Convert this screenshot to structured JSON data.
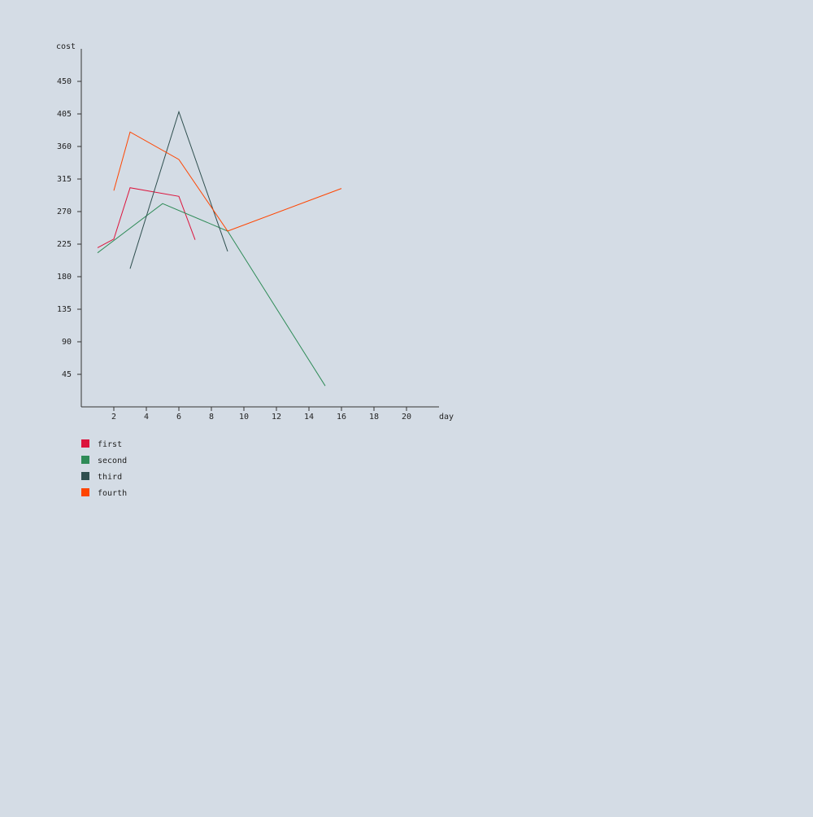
{
  "chart_data": {
    "type": "line",
    "title": "",
    "xlabel": "day",
    "ylabel": "cost",
    "xlim": [
      0,
      22
    ],
    "ylim": [
      0,
      495
    ],
    "x_ticks": [
      2,
      4,
      6,
      8,
      10,
      12,
      14,
      16,
      18,
      20
    ],
    "y_ticks": [
      45,
      90,
      135,
      180,
      225,
      270,
      315,
      360,
      405,
      450
    ],
    "grid": false,
    "legend_position": "bottom-left",
    "series": [
      {
        "name": "first",
        "color": "#dc143c",
        "points": [
          [
            1,
            220
          ],
          [
            2,
            232
          ],
          [
            3,
            303
          ],
          [
            6,
            291
          ],
          [
            7,
            231
          ]
        ]
      },
      {
        "name": "second",
        "color": "#2e8b57",
        "points": [
          [
            1,
            213
          ],
          [
            5,
            281
          ],
          [
            9,
            243
          ],
          [
            15,
            29
          ]
        ]
      },
      {
        "name": "third",
        "color": "#2f4f4f",
        "points": [
          [
            3,
            191
          ],
          [
            6,
            408
          ],
          [
            9,
            215
          ]
        ]
      },
      {
        "name": "fourth",
        "color": "#ff4500",
        "points": [
          [
            2,
            299
          ],
          [
            3,
            380
          ],
          [
            6,
            342
          ],
          [
            9,
            243
          ],
          [
            16,
            302
          ]
        ]
      }
    ]
  }
}
